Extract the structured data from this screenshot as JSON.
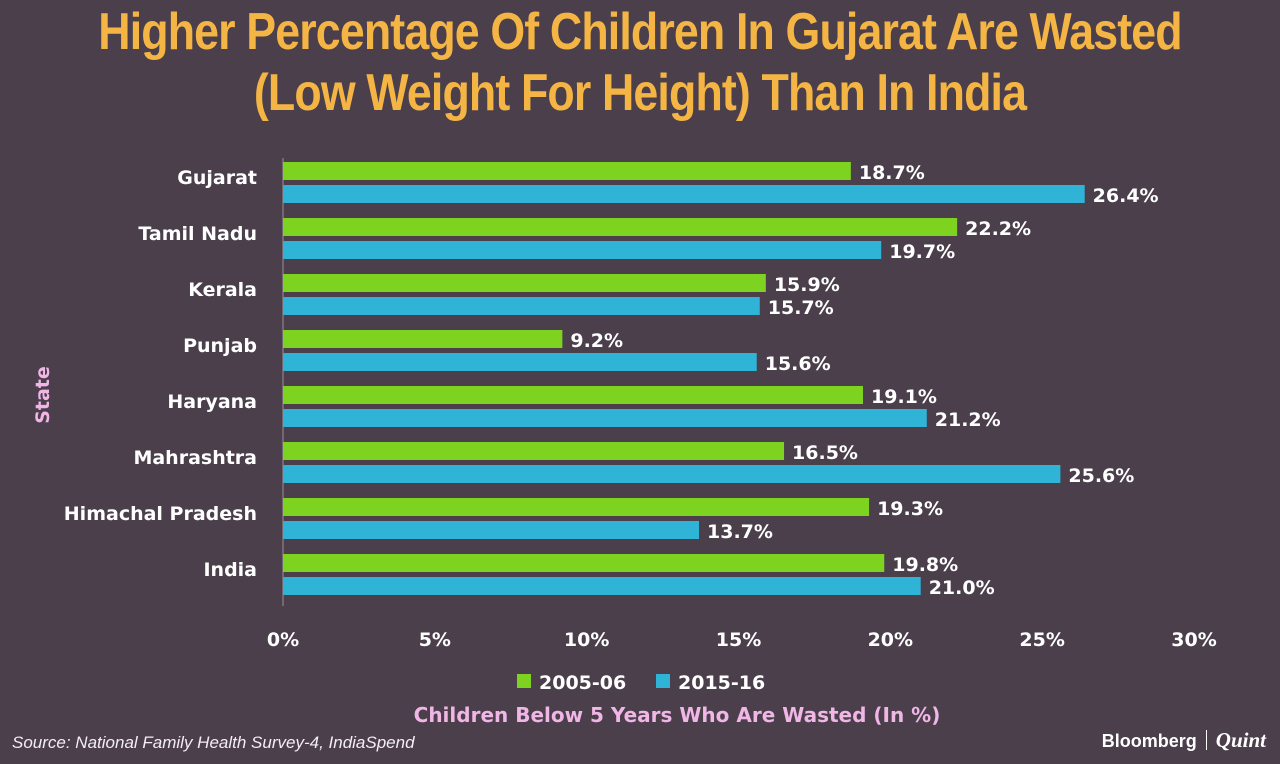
{
  "title": {
    "line1": "Higher Percentage Of Children In Gujarat Are Wasted",
    "line2": "(Low Weight For Height) Than In India"
  },
  "source": "Source: National Family Health Survey-4, IndiaSpend",
  "brand": {
    "name1": "Bloomberg",
    "name2": "Quint"
  },
  "colors": {
    "background": "#4a3f4b",
    "title": "#f5b544",
    "series_2005": "#7ed321",
    "series_2015": "#2fb4d8",
    "axis_title": "#f0b6e6",
    "text": "#ffffff"
  },
  "chart_data": {
    "type": "bar",
    "orientation": "horizontal",
    "ylabel": "State",
    "xlabel": "Children Below 5 Years Who Are Wasted (In %)",
    "categories": [
      "Gujarat",
      "Tamil Nadu",
      "Kerala",
      "Punjab",
      "Haryana",
      "Mahrashtra",
      "Himachal Pradesh",
      "India"
    ],
    "series": [
      {
        "name": "2005-06",
        "values": [
          18.7,
          22.2,
          15.9,
          9.2,
          19.1,
          16.5,
          19.3,
          19.8
        ],
        "labels": [
          "18.7%",
          "22.2%",
          "15.9%",
          "9.2%",
          "19.1%",
          "16.5%",
          "19.3%",
          "19.8%"
        ]
      },
      {
        "name": "2015-16",
        "values": [
          26.4,
          19.7,
          15.7,
          15.6,
          21.2,
          25.6,
          13.7,
          21.0
        ],
        "labels": [
          "26.4%",
          "19.7%",
          "15.7%",
          "15.6%",
          "21.2%",
          "25.6%",
          "13.7%",
          "21.0%"
        ]
      }
    ],
    "xlim": [
      0,
      30
    ],
    "xticks": [
      0,
      5,
      10,
      15,
      20,
      25,
      30
    ],
    "xtick_labels": [
      "0%",
      "5%",
      "10%",
      "15%",
      "20%",
      "25%",
      "30%"
    ],
    "legend_position": "bottom-center"
  }
}
